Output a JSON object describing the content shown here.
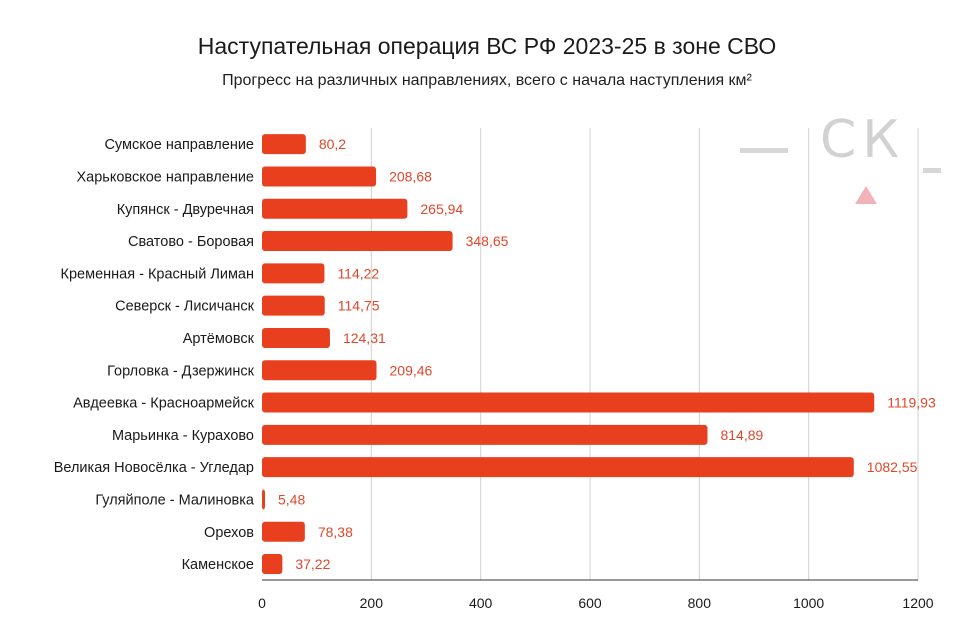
{
  "title": "Наступательная операция ВС РФ 2023-25 в зоне СВО",
  "subtitle": "Прогресс на различных направлениях, всего с начала наступления км²",
  "watermark": {
    "text": "СК"
  },
  "colors": {
    "bar": "#e8401f",
    "value_label": "#e0472a",
    "grid": "#d0d0d0"
  },
  "chart_data": {
    "type": "bar",
    "orientation": "horizontal",
    "title": "Наступательная операция ВС РФ 2023-25 в зоне СВО",
    "subtitle": "Прогресс на различных направлениях, всего с начала наступления км²",
    "categories": [
      "Сумское направление",
      "Харьковское направление",
      "Купянск - Двуречная",
      "Сватово - Боровая",
      "Кременная - Красный Лиман",
      "Северск - Лисичанск",
      "Артёмовск",
      "Горловка - Дзержинск",
      "Авдеевка - Красноармейск",
      "Марьинка - Курахово",
      "Великая Новосёлка - Угледар",
      "Гуляйполе - Малиновка",
      "Орехов",
      "Каменское"
    ],
    "values": [
      80.2,
      208.68,
      265.94,
      348.65,
      114.22,
      114.75,
      124.31,
      209.46,
      1119.93,
      814.89,
      1082.55,
      5.48,
      78.38,
      37.22
    ],
    "value_labels": [
      "80,2",
      "208,68",
      "265,94",
      "348,65",
      "114,22",
      "114,75",
      "124,31",
      "209,46",
      "1119,93",
      "814,89",
      "1082,55",
      "5,48",
      "78,38",
      "37,22"
    ],
    "xlim": [
      0,
      1200
    ],
    "xticks": [
      0,
      200,
      400,
      600,
      800,
      1000,
      1200
    ],
    "grid": true,
    "legend": "none"
  }
}
